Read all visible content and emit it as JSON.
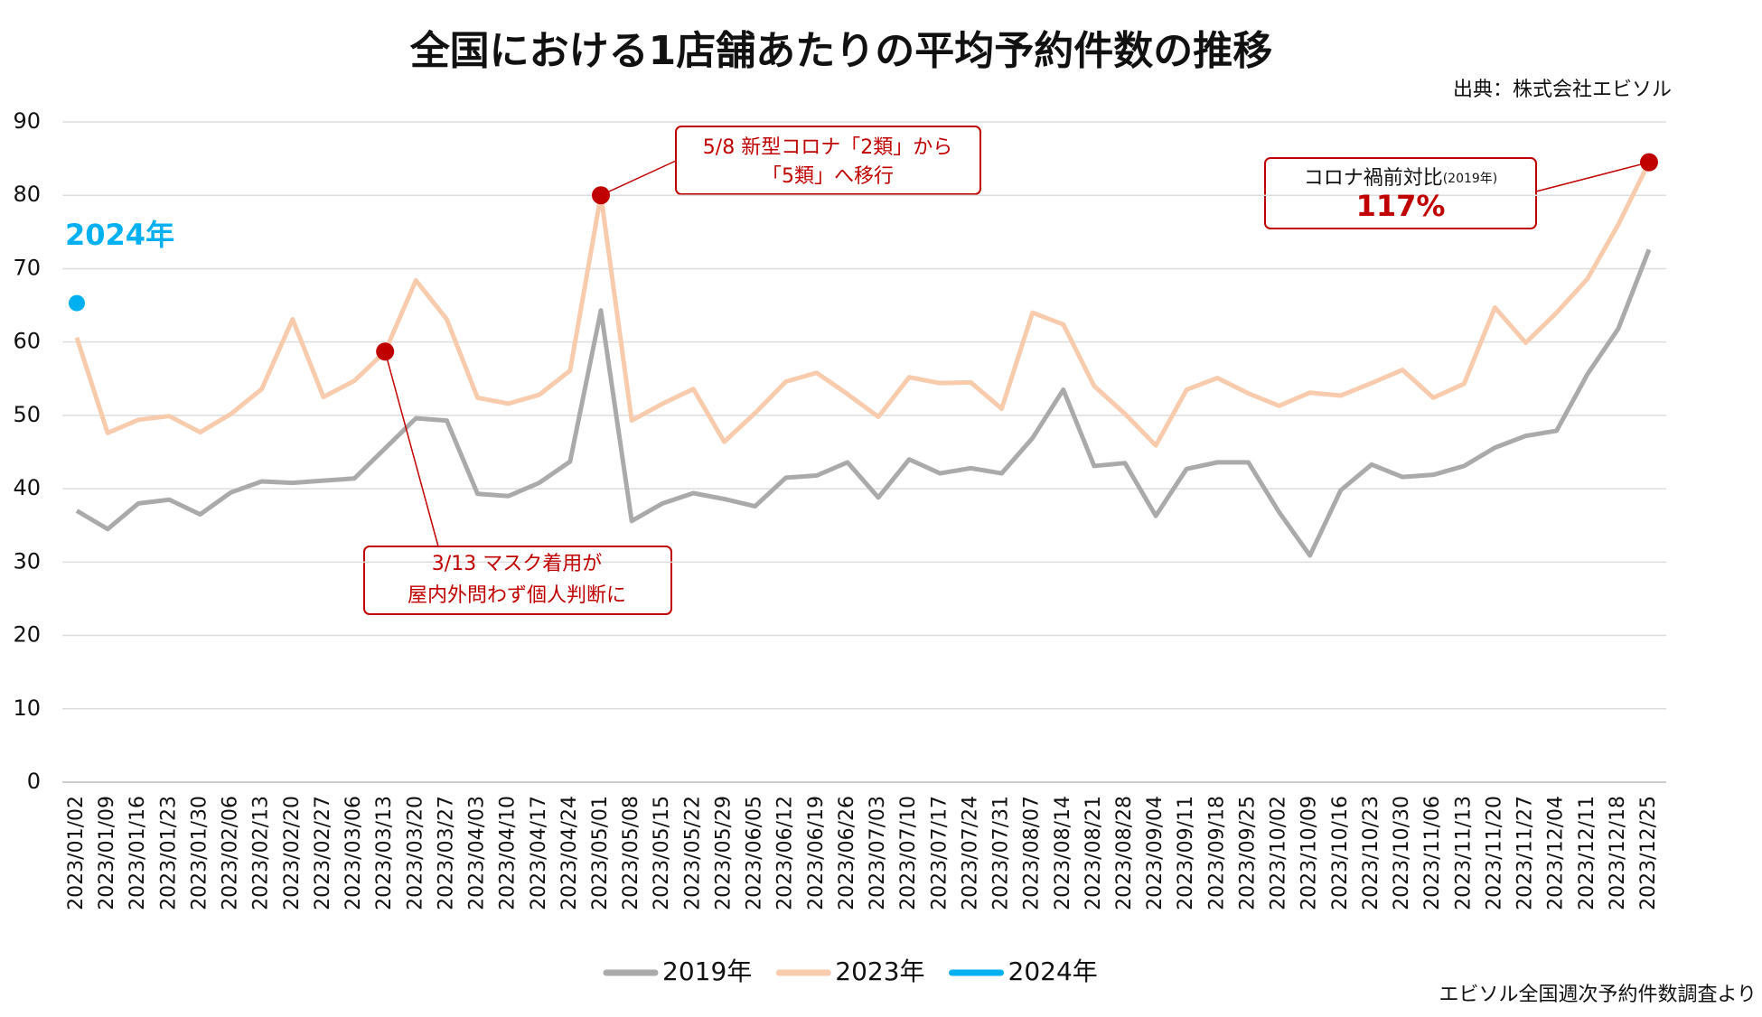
{
  "chart_data": {
    "type": "line",
    "title": "全国における1店舗あたりの平均予約件数の推移",
    "source": "出典：株式会社エビソル",
    "footnote": "エビソル全国週次予約件数調査より",
    "categories": [
      "2023/01/02",
      "2023/01/09",
      "2023/01/16",
      "2023/01/23",
      "2023/01/30",
      "2023/02/06",
      "2023/02/13",
      "2023/02/20",
      "2023/02/27",
      "2023/03/06",
      "2023/03/13",
      "2023/03/20",
      "2023/03/27",
      "2023/04/03",
      "2023/04/10",
      "2023/04/17",
      "2023/04/24",
      "2023/05/01",
      "2023/05/08",
      "2023/05/15",
      "2023/05/22",
      "2023/05/29",
      "2023/06/05",
      "2023/06/12",
      "2023/06/19",
      "2023/06/26",
      "2023/07/03",
      "2023/07/10",
      "2023/07/17",
      "2023/07/24",
      "2023/07/31",
      "2023/08/07",
      "2023/08/14",
      "2023/08/21",
      "2023/08/28",
      "2023/09/04",
      "2023/09/11",
      "2023/09/18",
      "2023/09/25",
      "2023/10/02",
      "2023/10/09",
      "2023/10/16",
      "2023/10/23",
      "2023/10/30",
      "2023/11/06",
      "2023/11/13",
      "2023/11/20",
      "2023/11/27",
      "2023/12/04",
      "2023/12/11",
      "2023/12/18",
      "2023/12/25"
    ],
    "series": [
      {
        "name": "2019年",
        "color": "#aaaaaa",
        "values": [
          37,
          34.5,
          38,
          38.5,
          36.5,
          39.5,
          41,
          40.8,
          41.1,
          41.4,
          45.5,
          49.6,
          49.3,
          39.3,
          39,
          40.8,
          43.7,
          64.3,
          35.6,
          38,
          39.4,
          38.6,
          37.6,
          41.5,
          41.8,
          43.6,
          38.8,
          44,
          42.1,
          42.8,
          42.1,
          46.9,
          53.5,
          43.1,
          43.5,
          36.3,
          42.7,
          43.6,
          43.6,
          36.8,
          30.9,
          39.8,
          43.3,
          41.6,
          41.9,
          43.1,
          45.6,
          47.2,
          47.9,
          55.6,
          61.8,
          72.6
        ]
      },
      {
        "name": "2023年",
        "color": "#f8cbad",
        "values": [
          60.6,
          47.6,
          49.4,
          49.9,
          47.7,
          50.2,
          53.6,
          63.1,
          52.5,
          54.7,
          58.7,
          68.4,
          63.1,
          52.4,
          51.6,
          52.8,
          56.1,
          80,
          49.3,
          51.6,
          53.6,
          46.4,
          50.3,
          54.6,
          55.8,
          52.9,
          49.8,
          55.2,
          54.4,
          54.5,
          50.9,
          64,
          62.4,
          54,
          50.2,
          45.9,
          53.5,
          55.1,
          53,
          51.3,
          53.1,
          52.7,
          54.4,
          56.2,
          52.4,
          54.3,
          64.7,
          59.9,
          64,
          68.6,
          76,
          84.5
        ]
      },
      {
        "name": "2024年",
        "color": "#00b0f0",
        "label": "2024年",
        "values": [
          65.3,
          null,
          null,
          null,
          null,
          null,
          null,
          null,
          null,
          null,
          null,
          null,
          null,
          null,
          null,
          null,
          null,
          null,
          null,
          null,
          null,
          null,
          null,
          null,
          null,
          null,
          null,
          null,
          null,
          null,
          null,
          null,
          null,
          null,
          null,
          null,
          null,
          null,
          null,
          null,
          null,
          null,
          null,
          null,
          null,
          null,
          null,
          null,
          null,
          null,
          null,
          null
        ]
      }
    ],
    "annotations": [
      {
        "series": 1,
        "index": 17,
        "color": "#c00000",
        "lines": [
          "5/8  新型コロナ「2類」から",
          "「5類」へ移行"
        ]
      },
      {
        "series": 1,
        "index": 10,
        "color": "#c00000",
        "lines": [
          "3/13  マスク着用が",
          "屋内外問わず個人判断に"
        ]
      },
      {
        "series": 1,
        "index": 51,
        "color": "#c00000",
        "lines": [
          "コロナ禍前対比",
          "117%"
        ],
        "note": "(2019年)"
      }
    ],
    "ylim": [
      0,
      90
    ],
    "yticks": [
      0,
      10,
      20,
      30,
      40,
      50,
      60,
      70,
      80,
      90
    ],
    "grid": true,
    "legend": "bottom"
  }
}
